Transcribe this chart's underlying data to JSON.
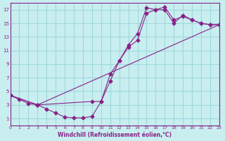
{
  "xlabel": "Windchill (Refroidissement éolien,°C)",
  "bg_color": "#c8eef0",
  "grid_color": "#a0d8dc",
  "line_color": "#882288",
  "xlim": [
    0,
    23
  ],
  "ylim": [
    0,
    18
  ],
  "xticks": [
    0,
    1,
    2,
    3,
    4,
    5,
    6,
    7,
    8,
    9,
    10,
    11,
    12,
    13,
    14,
    15,
    16,
    17,
    18,
    19,
    20,
    21,
    22,
    23
  ],
  "yticks": [
    1,
    3,
    5,
    7,
    9,
    11,
    13,
    15,
    17
  ],
  "line1_x": [
    0,
    1,
    2,
    3,
    4,
    5,
    6,
    7,
    8,
    9,
    10,
    11,
    12,
    13,
    14,
    15,
    16,
    17,
    18,
    19,
    20,
    21,
    22,
    23
  ],
  "line1_y": [
    4.4,
    3.8,
    3.2,
    3.0,
    2.4,
    1.8,
    1.2,
    1.1,
    1.1,
    1.3,
    3.5,
    7.5,
    9.5,
    11.8,
    13.5,
    17.3,
    17.0,
    17.4,
    15.5,
    16.0,
    15.5,
    15.0,
    14.8,
    14.8
  ],
  "line2_x": [
    0,
    3,
    9,
    10,
    11,
    12,
    13,
    14,
    15,
    16,
    17,
    18,
    19,
    20,
    21,
    22,
    23
  ],
  "line2_y": [
    4.4,
    3.0,
    3.5,
    3.5,
    6.5,
    9.5,
    11.5,
    12.5,
    16.5,
    17.0,
    17.0,
    15.0,
    16.2,
    15.5,
    15.0,
    14.8,
    14.8
  ],
  "line3_x": [
    0,
    3,
    23
  ],
  "line3_y": [
    4.4,
    3.0,
    14.8
  ]
}
